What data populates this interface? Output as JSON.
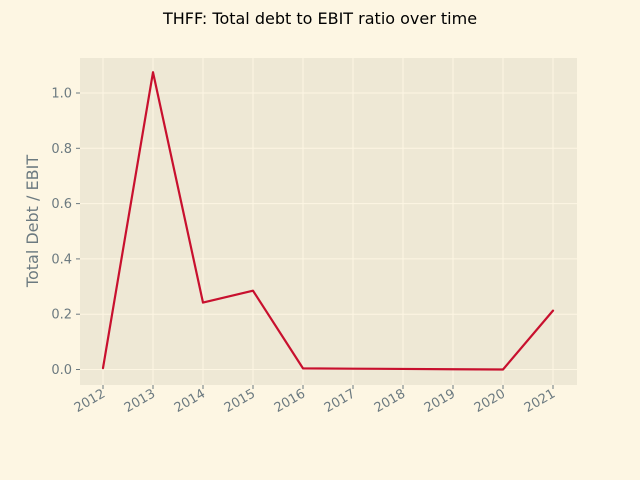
{
  "chart_data": {
    "type": "line",
    "title": "THFF: Total debt to EBIT ratio over time",
    "xlabel": "",
    "ylabel": "Total Debt / EBIT",
    "x": [
      "2012",
      "2013",
      "2014",
      "2015",
      "2016",
      "2017",
      "2018",
      "2019",
      "2020",
      "2021"
    ],
    "series": [
      {
        "values": [
          0.005,
          1.075,
          0.242,
          0.285,
          0.004,
          0.003,
          0.002,
          0.001,
          0.0,
          0.213
        ],
        "color": "#c8102e"
      }
    ],
    "yticks": [
      0.0,
      0.2,
      0.4,
      0.6,
      0.8,
      1.0
    ],
    "ylim": [
      -0.054,
      1.128
    ],
    "grid": true,
    "legend": "none",
    "colors": {
      "page_background": "#fdf6e3",
      "plot_background": "#eee8d5",
      "grid": "#fdf6e3",
      "tick_text": "#6c7a80"
    }
  }
}
